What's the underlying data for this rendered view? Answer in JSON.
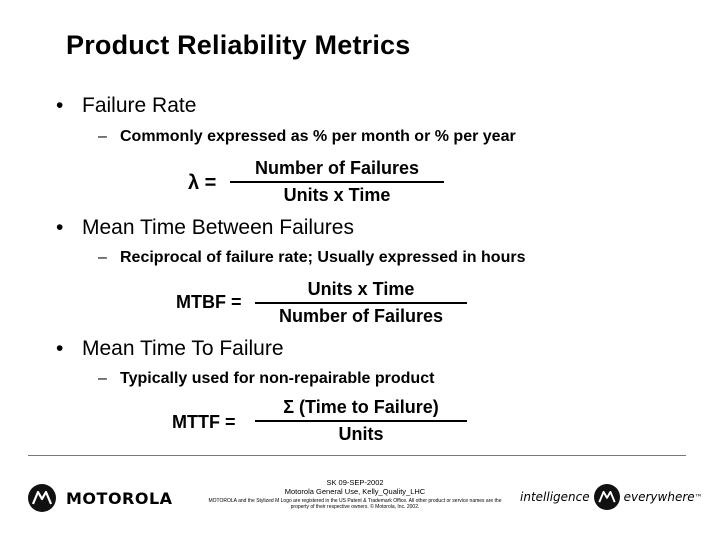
{
  "title": "Product Reliability Metrics",
  "bullets": [
    {
      "symbol": "•",
      "label": "Failure Rate",
      "dash": "–",
      "sub": "Commonly expressed as % per month or % per year"
    },
    {
      "symbol": "•",
      "label": "Mean Time Between Failures",
      "dash": "–",
      "sub": "Reciprocal of failure rate; Usually expressed in hours"
    },
    {
      "symbol": "•",
      "label": "Mean Time To Failure",
      "dash": "–",
      "sub": "Typically used for non-repairable product"
    }
  ],
  "formulas": {
    "lambda": {
      "lhs": "λ =",
      "numerator": "Number of Failures",
      "denominator": "Units x Time"
    },
    "mtbf": {
      "lhs": "MTBF =",
      "numerator": "Units x Time",
      "denominator": "Number of Failures"
    },
    "mttf": {
      "lhs": "MTTF =",
      "numerator": "Σ (Time to Failure)",
      "denominator": "Units"
    }
  },
  "footer": {
    "logo_text": "MOTOROLA",
    "line1": "SK 09-SEP-2002",
    "line2": "Motorola General Use, Kelly_Quality_LHC",
    "legal": "MOTOROLA and the Stylized M Logo are registered in the US Patent & Trademark Office. All other product or service names are the property of their respective owners. © Motorola, Inc. 2002.",
    "tagline_left": "intelligence",
    "tagline_right": "everywhere",
    "tagline_mark": "™"
  }
}
